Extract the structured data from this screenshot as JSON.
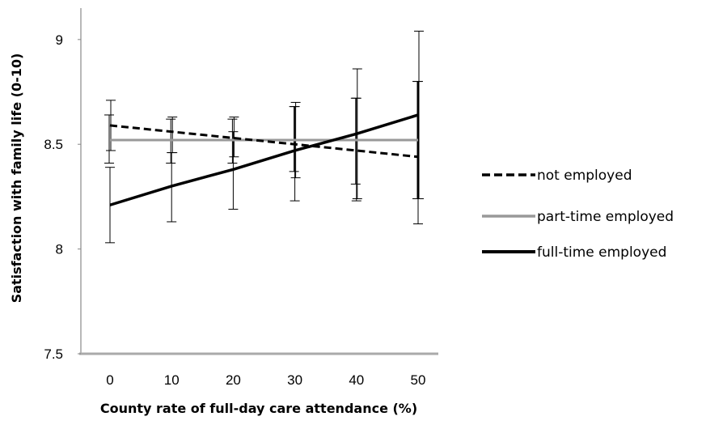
{
  "chart_data": {
    "type": "line",
    "title": "",
    "xlabel": "County rate of full-day care attendance (%)",
    "ylabel": "Satisfaction with family life (0-10)",
    "x": [
      0,
      10,
      20,
      30,
      40,
      50
    ],
    "xlim": [
      -5,
      55
    ],
    "ylim": [
      7.5,
      9.15
    ],
    "yticks": [
      7.5,
      8,
      8.5,
      9
    ],
    "ytick_labels": [
      "7.5",
      "8",
      "8.5",
      "9"
    ],
    "xtick_labels": [
      "0",
      "10",
      "20",
      "30",
      "40",
      "50"
    ],
    "grid": false,
    "legend_position": "right",
    "series": [
      {
        "name": "not employed",
        "style": "dashed",
        "color": "#000000",
        "values": [
          8.59,
          8.56,
          8.53,
          8.5,
          8.47,
          8.44
        ],
        "err_low": [
          8.47,
          8.46,
          8.44,
          8.34,
          8.24,
          8.24
        ],
        "err_high": [
          8.71,
          8.63,
          8.63,
          8.7,
          8.86,
          9.04
        ]
      },
      {
        "name": "part-time employed",
        "style": "solid",
        "color": "#999999",
        "values": [
          8.52,
          8.52,
          8.52,
          8.52,
          8.52,
          8.52
        ],
        "err_low": [
          8.41,
          8.41,
          8.41,
          8.37,
          8.31,
          8.24
        ],
        "err_high": [
          8.64,
          8.62,
          8.62,
          8.68,
          8.72,
          8.8
        ]
      },
      {
        "name": "full-time employed",
        "style": "solid",
        "color": "#000000",
        "values": [
          8.21,
          8.3,
          8.38,
          8.47,
          8.55,
          8.64
        ],
        "err_low": [
          8.03,
          8.13,
          8.19,
          8.23,
          8.23,
          8.12
        ],
        "err_high": [
          8.39,
          8.46,
          8.56,
          8.68,
          8.72,
          8.8
        ]
      }
    ]
  }
}
